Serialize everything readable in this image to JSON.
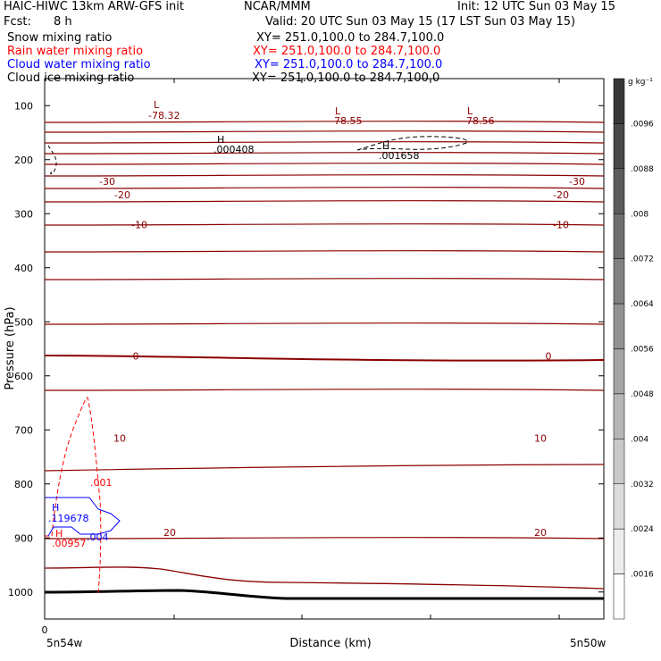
{
  "header": {
    "title_left": "HAIC-HIWC 13km ARW-GFS init",
    "center": "NCAR/MMM",
    "init": "Init: 12 UTC Sun 03 May 15",
    "fcst_label": "Fcst:",
    "fcst_value": "8 h",
    "valid": "Valid: 20 UTC Sun 03 May 15 (17 LST Sun 03 May 15)",
    "fields": [
      {
        "name": "Snow mixing ratio",
        "xy": "XY= 251.0,100.0 to 284.7,100.0",
        "color": "#000000"
      },
      {
        "name": "Rain water mixing ratio",
        "xy": "XY= 251.0,100.0 to 284.7,100.0",
        "color": "#ff0000"
      },
      {
        "name": "Cloud water mixing ratio",
        "xy": "XY= 251.0,100.0 to 284.7,100.0",
        "color": "#0000ff"
      },
      {
        "name": "Cloud ice mixing ratio",
        "xy": "XY= 251.0,100.0 to 284.7,100.0",
        "color": "#000000"
      }
    ]
  },
  "chart_data": {
    "type": "line",
    "ylabel": "Pressure (hPa)",
    "xlabel": "Distance (km)",
    "x_left_label": "5n54w",
    "x_right_label": "5n50w",
    "x_ticks": [
      "0"
    ],
    "yticks": [
      100,
      200,
      300,
      400,
      500,
      600,
      700,
      800,
      900,
      1000
    ],
    "ylim": [
      50,
      1050
    ],
    "colorbar": {
      "unit": "g kg⁻¹",
      "labels": [
        ".0096",
        ".0088",
        ".008",
        ".0072",
        ".0064",
        ".0056",
        ".0048",
        ".004",
        ".0032",
        ".0024",
        ".0016"
      ]
    },
    "temperature_contour_labels": [
      {
        "text": "-30",
        "p": 240
      },
      {
        "text": "-20",
        "p": 265
      },
      {
        "text": "-10",
        "p": 320
      },
      {
        "text": "0",
        "p": 563
      },
      {
        "text": "10",
        "p": 715
      },
      {
        "text": "20",
        "p": 890
      }
    ],
    "annotations": [
      {
        "text": "L",
        "value": "-78.32",
        "color": "#8b0000"
      },
      {
        "text": "L",
        "value": "-78.55",
        "color": "#8b0000"
      },
      {
        "text": "L",
        "value": "-78.56",
        "color": "#8b0000"
      },
      {
        "text": "H",
        "value": ".000408",
        "color": "#000000"
      },
      {
        "text": "H",
        "value": ".001658",
        "color": "#000000"
      },
      {
        "text": "H",
        "value": ".119678",
        "color": "#0000ff"
      },
      {
        "text": "H",
        "value": ".00957",
        "color": "#ff0000"
      },
      {
        "text": "",
        "value": ".001",
        "color": "#ff0000"
      },
      {
        "text": "",
        "value": ".004",
        "color": "#0000ff"
      }
    ],
    "grid": false
  }
}
